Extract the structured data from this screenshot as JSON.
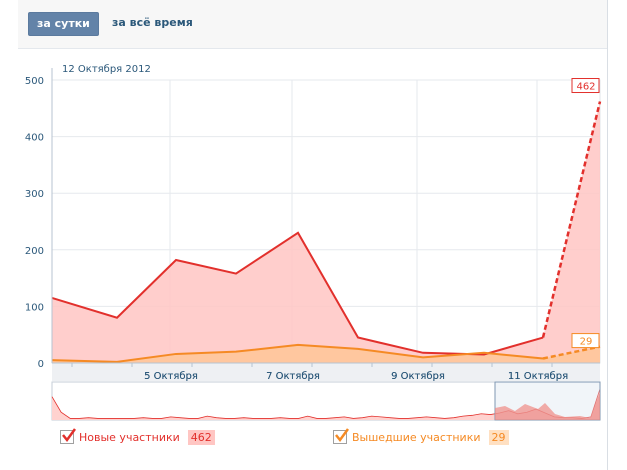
{
  "tabs": {
    "day": "за сутки",
    "all_time": "за всё время"
  },
  "chart_data": {
    "type": "area",
    "title": "12 Октября 2012",
    "ylim": [
      0,
      500
    ],
    "yticks": [
      0,
      100,
      200,
      300,
      400,
      500
    ],
    "xticks": [
      {
        "i": 2,
        "label": "5 Октября"
      },
      {
        "i": 4,
        "label": "7 Октября"
      },
      {
        "i": 6,
        "label": "9 Октября"
      },
      {
        "i": 8,
        "label": "11 Октября"
      }
    ],
    "series": [
      {
        "name": "Новые участники",
        "color": "#e2302c",
        "fill": "#ffc6c3",
        "values": [
          115,
          80,
          182,
          158,
          230,
          45,
          18,
          15,
          45,
          462
        ],
        "last_label": "462"
      },
      {
        "name": "Вышедшие участники",
        "color": "#f58a24",
        "fill": "#ffc79a",
        "values": [
          5,
          2,
          16,
          20,
          32,
          25,
          10,
          18,
          8,
          29
        ],
        "last_label": "29"
      }
    ]
  },
  "legend": [
    {
      "label": "Новые участники",
      "value": "462"
    },
    {
      "label": "Вышедшие участники",
      "value": "29"
    }
  ]
}
